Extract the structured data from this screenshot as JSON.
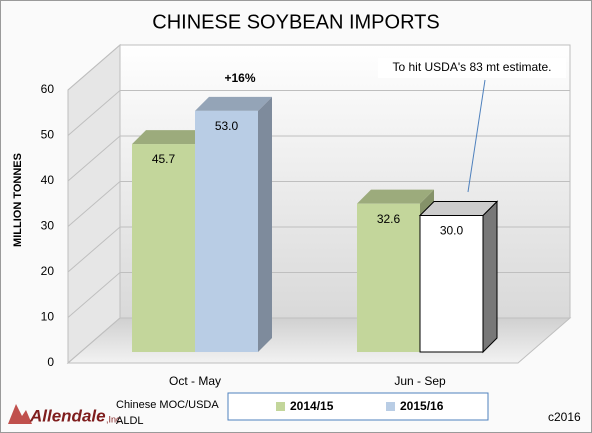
{
  "chart_data": {
    "type": "bar",
    "title": "CHINESE SOYBEAN IMPORTS",
    "y_label": "MILLION TONNES",
    "categories": [
      "Oct - May",
      "Jun - Sep"
    ],
    "series": [
      {
        "name": "2014/15",
        "color": "#c3d69b",
        "values": [
          45.7,
          32.6
        ]
      },
      {
        "name": "2015/16",
        "color": "#b9cde5",
        "point_colors": [
          "#b9cde5",
          "#ffffff"
        ],
        "values": [
          53.0,
          30.0
        ],
        "value_labels": [
          "53.0",
          "30.0"
        ]
      }
    ],
    "ylim": [
      0,
      60
    ],
    "yticks": [
      0,
      10,
      20,
      30,
      40,
      50,
      60
    ],
    "grid": true,
    "annotations": [
      "+16%",
      "To hit USDA's 83 mt estimate."
    ]
  },
  "footer": {
    "logo": {
      "name": "Allendale",
      "suffix": ",Inc."
    },
    "source": [
      "Chinese MOC/USDA",
      "ALDL"
    ],
    "copyright": "c2016"
  }
}
